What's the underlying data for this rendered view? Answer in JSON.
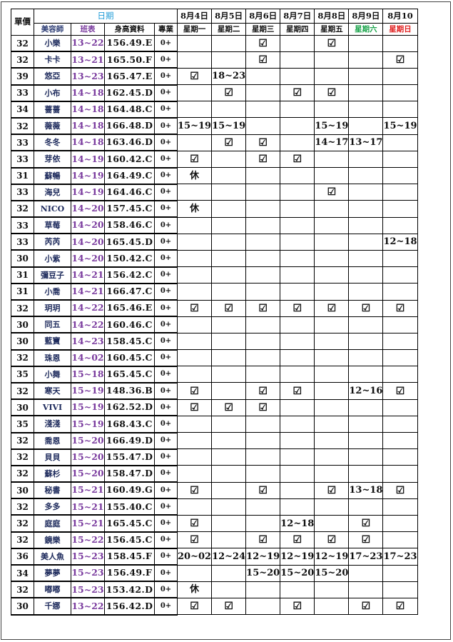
{
  "header": {
    "price": "單價",
    "date_group": "日期",
    "stylist": "美容師",
    "shift": "班表",
    "profile": "身高資料",
    "pro": "專業",
    "dates": [
      "8月4日",
      "8月5日",
      "8月6日",
      "8月7日",
      "8月8日",
      "8月9日",
      "8月10"
    ],
    "weekdays": [
      "星期一",
      "星期二",
      "星期三",
      "星期四",
      "星期五",
      "星期六",
      "星期日"
    ]
  },
  "colors": {
    "date_group": "#1e9bd7",
    "shift": "#7a3b9e",
    "saturday": "#1aa34a",
    "sunday": "#e02020",
    "name": "#1d2a5c"
  },
  "check_symbol": "☑",
  "rows": [
    {
      "price": "32",
      "name": "小樂",
      "shift": "13~22",
      "profile": "156.49.E",
      "pro": "0+",
      "days": [
        "",
        "",
        "☑",
        "",
        "☑",
        "",
        ""
      ]
    },
    {
      "price": "32",
      "name": "卡卡",
      "shift": "13~21",
      "profile": "165.50.F",
      "pro": "0+",
      "days": [
        "",
        "",
        "☑",
        "",
        "",
        "",
        "☑"
      ]
    },
    {
      "price": "39",
      "name": "悠亞",
      "shift": "13~23",
      "profile": "165.47.E",
      "pro": "0+",
      "days": [
        "☑",
        "18~23",
        "",
        "",
        "",
        "",
        ""
      ]
    },
    {
      "price": "33",
      "name": "小布",
      "shift": "14~18",
      "profile": "162.45.D",
      "pro": "0+",
      "days": [
        "",
        "☑",
        "",
        "☑",
        "☑",
        "",
        ""
      ]
    },
    {
      "price": "34",
      "name": "薔薔",
      "shift": "14~18",
      "profile": "164.48.C",
      "pro": "0+",
      "days": [
        "",
        "",
        "",
        "",
        "",
        "",
        ""
      ]
    },
    {
      "price": "32",
      "name": "薇薇",
      "shift": "14~18",
      "profile": "166.48.D",
      "pro": "0+",
      "days": [
        "15~19",
        "15~19",
        "",
        "",
        "15~19",
        "",
        "15~19"
      ]
    },
    {
      "price": "33",
      "name": "冬冬",
      "shift": "14~18",
      "profile": "163.46.D",
      "pro": "0+",
      "days": [
        "",
        "☑",
        "☑",
        "",
        "14~17",
        "13~17",
        ""
      ]
    },
    {
      "price": "33",
      "name": "芽依",
      "shift": "14~19",
      "profile": "160.42.C",
      "pro": "0+",
      "days": [
        "☑",
        "",
        "☑",
        "☑",
        "",
        "",
        ""
      ]
    },
    {
      "price": "31",
      "name": "蘇暢",
      "shift": "14~19",
      "profile": "164.49.C",
      "pro": "0+",
      "days": [
        "休",
        "",
        "",
        "",
        "",
        "",
        ""
      ]
    },
    {
      "price": "33",
      "name": "海兒",
      "shift": "14~19",
      "profile": "164.46.C",
      "pro": "0+",
      "days": [
        "",
        "",
        "",
        "",
        "☑",
        "",
        ""
      ]
    },
    {
      "price": "32",
      "name": "NICO",
      "shift": "14~20",
      "profile": "157.45.C",
      "pro": "0+",
      "days": [
        "休",
        "",
        "",
        "",
        "",
        "",
        ""
      ]
    },
    {
      "price": "33",
      "name": "草莓",
      "shift": "14~20",
      "profile": "158.46.C",
      "pro": "0+",
      "days": [
        "",
        "",
        "",
        "",
        "",
        "",
        ""
      ]
    },
    {
      "price": "33",
      "name": "芮芮",
      "shift": "14~20",
      "profile": "165.45.D",
      "pro": "0+",
      "days": [
        "",
        "",
        "",
        "",
        "",
        "",
        "12~18"
      ]
    },
    {
      "price": "30",
      "name": "小紫",
      "shift": "14~20",
      "profile": "150.42.C",
      "pro": "0+",
      "days": [
        "",
        "",
        "",
        "",
        "",
        "",
        ""
      ]
    },
    {
      "price": "31",
      "name": "彌豆子",
      "shift": "14~21",
      "profile": "156.42.C",
      "pro": "0+",
      "days": [
        "",
        "",
        "",
        "",
        "",
        "",
        ""
      ]
    },
    {
      "price": "31",
      "name": "小喬",
      "shift": "14~21",
      "profile": "166.47.C",
      "pro": "0+",
      "days": [
        "",
        "",
        "",
        "",
        "",
        "",
        ""
      ]
    },
    {
      "price": "32",
      "name": "玥玥",
      "shift": "14~22",
      "profile": "165.46.E",
      "pro": "0+",
      "days": [
        "☑",
        "☑",
        "☑",
        "☑",
        "☑",
        "☑",
        "☑"
      ]
    },
    {
      "price": "30",
      "name": "同五",
      "shift": "14~22",
      "profile": "160.46.C",
      "pro": "0+",
      "days": [
        "",
        "",
        "",
        "",
        "",
        "",
        ""
      ]
    },
    {
      "price": "30",
      "name": "藍寶",
      "shift": "14~23",
      "profile": "158.45.C",
      "pro": "0+",
      "days": [
        "",
        "",
        "",
        "",
        "",
        "",
        ""
      ]
    },
    {
      "price": "32",
      "name": "珠恩",
      "shift": "14~02",
      "profile": "160.45.C",
      "pro": "0+",
      "days": [
        "",
        "",
        "",
        "",
        "",
        "",
        ""
      ]
    },
    {
      "price": "35",
      "name": "小舞",
      "shift": "15~18",
      "profile": "165.45.C",
      "pro": "0+",
      "days": [
        "",
        "",
        "",
        "",
        "",
        "",
        ""
      ]
    },
    {
      "price": "32",
      "name": "寒天",
      "shift": "15~19",
      "profile": "148.36.B",
      "pro": "0+",
      "days": [
        "☑",
        "",
        "☑",
        "☑",
        "",
        "12~16",
        "☑"
      ]
    },
    {
      "price": "30",
      "name": "VIVI",
      "shift": "15~19",
      "profile": "162.52.D",
      "pro": "0+",
      "days": [
        "☑",
        "☑",
        "☑",
        "",
        "",
        "",
        ""
      ]
    },
    {
      "price": "35",
      "name": "淺淺",
      "shift": "15~19",
      "profile": "168.43.C",
      "pro": "0+",
      "days": [
        "",
        "",
        "",
        "",
        "",
        "",
        ""
      ]
    },
    {
      "price": "32",
      "name": "喬恩",
      "shift": "15~20",
      "profile": "166.49.D",
      "pro": "0+",
      "days": [
        "",
        "",
        "",
        "",
        "",
        "",
        ""
      ]
    },
    {
      "price": "32",
      "name": "貝貝",
      "shift": "15~20",
      "profile": "155.47.D",
      "pro": "0+",
      "days": [
        "",
        "",
        "",
        "",
        "",
        "",
        ""
      ]
    },
    {
      "price": "32",
      "name": "蘇杉",
      "shift": "15~20",
      "profile": "158.47.D",
      "pro": "0+",
      "days": [
        "",
        "",
        "",
        "",
        "",
        "",
        ""
      ]
    },
    {
      "price": "30",
      "name": "秘書",
      "shift": "15~21",
      "profile": "160.49.G",
      "pro": "0+",
      "days": [
        "☑",
        "",
        "☑",
        "",
        "☑",
        "13~18",
        "☑"
      ]
    },
    {
      "price": "32",
      "name": "多多",
      "shift": "15~21",
      "profile": "155.40.C",
      "pro": "0+",
      "days": [
        "",
        "",
        "",
        "",
        "",
        "",
        ""
      ]
    },
    {
      "price": "32",
      "name": "庭庭",
      "shift": "15~21",
      "profile": "165.45.C",
      "pro": "0+",
      "days": [
        "☑",
        "",
        "",
        "12~18",
        "",
        "☑",
        ""
      ]
    },
    {
      "price": "32",
      "name": "鏡樂",
      "shift": "15~22",
      "profile": "156.45.C",
      "pro": "0+",
      "days": [
        "☑",
        "",
        "☑",
        "☑",
        "☑",
        "☑",
        ""
      ]
    },
    {
      "price": "36",
      "name": "美人魚",
      "shift": "15~23",
      "profile": "158.45.F",
      "pro": "0+",
      "days": [
        "20~02",
        "12~24",
        "12~19",
        "12~19",
        "12~19",
        "17~23",
        "17~23"
      ]
    },
    {
      "price": "34",
      "name": "夢夢",
      "shift": "15~23",
      "profile": "156.49.F",
      "pro": "0+",
      "days": [
        "",
        "",
        "15~20",
        "15~20",
        "15~20",
        "",
        ""
      ]
    },
    {
      "price": "32",
      "name": "嘟嘟",
      "shift": "15~23",
      "profile": "153.42.D",
      "pro": "0+",
      "days": [
        "休",
        "",
        "",
        "",
        "",
        "",
        ""
      ]
    },
    {
      "price": "30",
      "name": "千娜",
      "shift": "13~22",
      "profile": "156.42.D",
      "pro": "0+",
      "days": [
        "☑",
        "☑",
        "",
        "☑",
        "",
        "☑",
        "☑"
      ]
    }
  ]
}
